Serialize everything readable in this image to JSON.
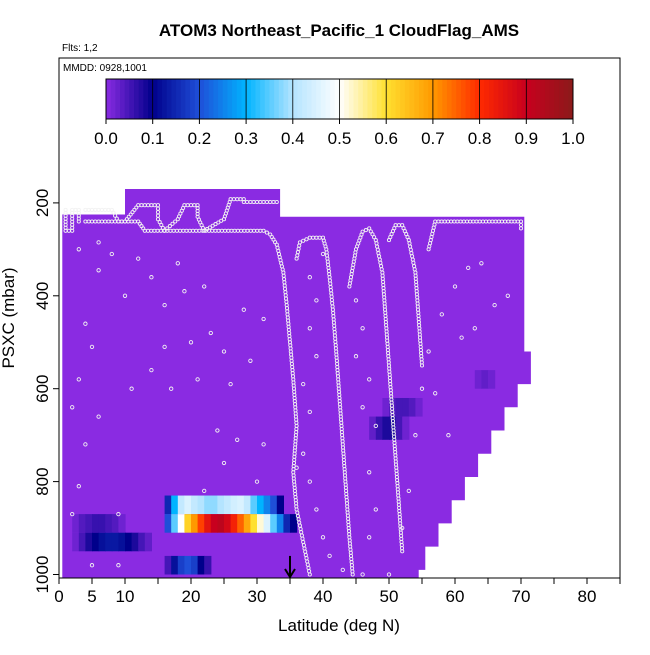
{
  "chart_data": {
    "type": "heatmap",
    "title": "ATOM3 Northeast_Pacific_1 CloudFlag_AMS",
    "subtitle_flights": "Flts: 1,2",
    "subtitle_dates": "MMDD: 0928,1001",
    "xlabel": "Latitude (deg N)",
    "ylabel": "PSXC (mbar)",
    "xlim": [
      0,
      85
    ],
    "ylim": [
      1000,
      0
    ],
    "x_ticks": [
      0,
      5,
      10,
      20,
      30,
      40,
      50,
      60,
      70,
      80
    ],
    "x_minor_ticks": [
      15,
      25,
      35,
      45,
      55,
      65,
      75,
      85
    ],
    "y_ticks": [
      200,
      400,
      600,
      800,
      1000
    ],
    "colorbar": {
      "min": 0.0,
      "max": 1.0,
      "ticks": [
        "0.0",
        "0.1",
        "0.2",
        "0.3",
        "0.4",
        "0.5",
        "0.6",
        "0.7",
        "0.8",
        "0.9",
        "1.0"
      ],
      "stops": [
        {
          "value": 0.0,
          "color": "#8a2be2"
        },
        {
          "value": 0.1,
          "color": "#00008b"
        },
        {
          "value": 0.2,
          "color": "#1f4fd8"
        },
        {
          "value": 0.3,
          "color": "#00b4ff"
        },
        {
          "value": 0.4,
          "color": "#b4e4ff"
        },
        {
          "value": 0.5,
          "color": "#ffffff"
        },
        {
          "value": 0.6,
          "color": "#ffe030"
        },
        {
          "value": 0.7,
          "color": "#ff9900"
        },
        {
          "value": 0.8,
          "color": "#ff2a00"
        },
        {
          "value": 0.9,
          "color": "#c8001e"
        },
        {
          "value": 1.0,
          "color": "#8b1a1a"
        }
      ]
    },
    "background_value": 0.0,
    "domain_envelope": [
      [
        0.5,
        225
      ],
      [
        10,
        225
      ],
      [
        10,
        170
      ],
      [
        33.5,
        170
      ],
      [
        33.5,
        230
      ],
      [
        70.5,
        230
      ],
      [
        70.5,
        520
      ],
      [
        71.5,
        520
      ],
      [
        71.5,
        590
      ],
      [
        69.5,
        590
      ],
      [
        69.5,
        640
      ],
      [
        67.5,
        640
      ],
      [
        67.5,
        690
      ],
      [
        65.5,
        690
      ],
      [
        65.5,
        740
      ],
      [
        63.5,
        740
      ],
      [
        63.5,
        790
      ],
      [
        61.5,
        790
      ],
      [
        61.5,
        840
      ],
      [
        59.5,
        840
      ],
      [
        59.5,
        890
      ],
      [
        57.5,
        890
      ],
      [
        57.5,
        940
      ],
      [
        55.5,
        940
      ],
      [
        55.5,
        990
      ],
      [
        54.5,
        990
      ],
      [
        54.5,
        1010
      ],
      [
        0.5,
        1010
      ]
    ],
    "data_patches": [
      {
        "lat_range": [
          16,
          34
        ],
        "p_range": [
          830,
          870
        ],
        "values": [
          0.15,
          0.3,
          0.42,
          0.45,
          0.42,
          0.4,
          0.38,
          0.38,
          0.4,
          0.42,
          0.44,
          0.45,
          0.42,
          0.35,
          0.3,
          0.25,
          0.2,
          0.1
        ]
      },
      {
        "lat_range": [
          16,
          36
        ],
        "p_range": [
          870,
          910
        ],
        "values": [
          0.2,
          0.35,
          0.5,
          0.62,
          0.7,
          0.78,
          0.85,
          0.9,
          0.92,
          0.88,
          0.82,
          0.75,
          0.68,
          0.6,
          0.52,
          0.45,
          0.35,
          0.25,
          0.15,
          0.1
        ]
      },
      {
        "lat_range": [
          2,
          10
        ],
        "p_range": [
          870,
          910
        ],
        "values": [
          0.02,
          0.04,
          0.05,
          0.06,
          0.06,
          0.05,
          0.04,
          0.02
        ]
      },
      {
        "lat_range": [
          2,
          14
        ],
        "p_range": [
          910,
          950
        ],
        "values": [
          0.02,
          0.05,
          0.08,
          0.1,
          0.12,
          0.13,
          0.13,
          0.12,
          0.1,
          0.08,
          0.05,
          0.03
        ]
      },
      {
        "lat_range": [
          16,
          23
        ],
        "p_range": [
          960,
          1000
        ],
        "values": [
          0.05,
          0.12,
          0.18,
          0.2,
          0.18,
          0.1,
          0.06
        ]
      },
      {
        "lat_range": [
          49,
          55
        ],
        "p_range": [
          620,
          660
        ],
        "values": [
          0.02,
          0.04,
          0.05,
          0.05,
          0.04,
          0.02
        ]
      },
      {
        "lat_range": [
          47,
          53
        ],
        "p_range": [
          660,
          710
        ],
        "values": [
          0.03,
          0.06,
          0.08,
          0.08,
          0.05,
          0.02
        ]
      },
      {
        "lat_range": [
          63,
          66
        ],
        "p_range": [
          560,
          600
        ],
        "values": [
          0.02,
          0.03,
          0.02
        ]
      }
    ],
    "flight_track_segments": [
      [
        [
          1,
          215
        ],
        [
          1,
          260
        ],
        [
          2,
          260
        ],
        [
          2,
          215
        ],
        [
          3,
          215
        ],
        [
          3,
          240
        ]
      ],
      [
        [
          4,
          215
        ],
        [
          8,
          215
        ],
        [
          9,
          240
        ],
        [
          10,
          240
        ],
        [
          12,
          205
        ],
        [
          15,
          205
        ],
        [
          15,
          235
        ],
        [
          16,
          260
        ],
        [
          18,
          235
        ],
        [
          19,
          205
        ],
        [
          21,
          205
        ],
        [
          21,
          230
        ],
        [
          22,
          260
        ],
        [
          25,
          235
        ],
        [
          26,
          192
        ],
        [
          28,
          192
        ],
        [
          28,
          198
        ],
        [
          33,
          198
        ]
      ],
      [
        [
          4,
          240
        ],
        [
          12,
          240
        ],
        [
          13,
          260
        ],
        [
          31,
          260
        ],
        [
          32,
          268
        ],
        [
          33,
          290
        ],
        [
          34,
          350
        ],
        [
          34.5,
          420
        ],
        [
          35,
          500
        ],
        [
          35.5,
          580
        ],
        [
          36,
          680
        ],
        [
          35.5,
          780
        ],
        [
          36,
          860
        ],
        [
          37,
          930
        ],
        [
          38,
          1000
        ]
      ],
      [
        [
          36,
          320
        ],
        [
          36.5,
          285
        ],
        [
          38,
          275
        ],
        [
          40,
          275
        ],
        [
          40.5,
          300
        ],
        [
          41,
          360
        ],
        [
          41.5,
          430
        ],
        [
          42,
          520
        ],
        [
          42.5,
          620
        ],
        [
          43,
          720
        ],
        [
          43.5,
          820
        ],
        [
          44,
          920
        ],
        [
          44.5,
          1000
        ]
      ],
      [
        [
          44,
          380
        ],
        [
          45,
          300
        ],
        [
          46,
          262
        ],
        [
          47,
          255
        ],
        [
          48,
          280
        ],
        [
          49,
          350
        ],
        [
          49.5,
          450
        ],
        [
          50,
          550
        ],
        [
          50.5,
          650
        ],
        [
          51,
          750
        ],
        [
          51.5,
          850
        ],
        [
          52,
          950
        ]
      ],
      [
        [
          50,
          280
        ],
        [
          51,
          248
        ],
        [
          52,
          248
        ],
        [
          53,
          280
        ],
        [
          54,
          350
        ],
        [
          54.5,
          450
        ],
        [
          55,
          550
        ]
      ],
      [
        [
          56,
          300
        ],
        [
          57,
          240
        ],
        [
          70,
          240
        ],
        [
          70,
          255
        ]
      ]
    ],
    "scatter_points": [
      [
        3,
        300
      ],
      [
        6,
        345
      ],
      [
        4,
        460
      ],
      [
        5,
        510
      ],
      [
        3,
        580
      ],
      [
        2,
        640
      ],
      [
        6,
        660
      ],
      [
        4,
        720
      ],
      [
        3,
        810
      ],
      [
        2,
        870
      ],
      [
        5,
        980
      ],
      [
        9,
        870
      ],
      [
        9,
        980
      ],
      [
        6,
        285
      ],
      [
        8,
        310
      ],
      [
        10,
        400
      ],
      [
        12,
        320
      ],
      [
        14,
        360
      ],
      [
        16,
        420
      ],
      [
        18,
        330
      ],
      [
        19,
        390
      ],
      [
        22,
        380
      ],
      [
        23,
        480
      ],
      [
        20,
        500
      ],
      [
        16,
        510
      ],
      [
        14,
        560
      ],
      [
        11,
        600
      ],
      [
        17,
        600
      ],
      [
        21,
        580
      ],
      [
        25,
        520
      ],
      [
        26,
        590
      ],
      [
        27,
        710
      ],
      [
        25,
        760
      ],
      [
        24,
        690
      ],
      [
        22,
        820
      ],
      [
        30,
        800
      ],
      [
        31,
        720
      ],
      [
        29,
        540
      ],
      [
        31,
        450
      ],
      [
        28,
        430
      ],
      [
        40,
        310
      ],
      [
        38,
        360
      ],
      [
        39,
        410
      ],
      [
        38,
        470
      ],
      [
        39,
        530
      ],
      [
        37,
        590
      ],
      [
        38,
        650
      ],
      [
        37,
        740
      ],
      [
        36,
        770
      ],
      [
        38,
        800
      ],
      [
        39,
        860
      ],
      [
        40,
        920
      ],
      [
        41,
        960
      ],
      [
        43,
        990
      ],
      [
        45,
        410
      ],
      [
        46,
        470
      ],
      [
        45,
        530
      ],
      [
        47,
        580
      ],
      [
        46,
        640
      ],
      [
        48,
        680
      ],
      [
        47,
        780
      ],
      [
        48,
        860
      ],
      [
        47,
        920
      ],
      [
        53,
        820
      ],
      [
        52,
        900
      ],
      [
        54,
        700
      ],
      [
        55,
        600
      ],
      [
        56,
        520
      ],
      [
        58,
        440
      ],
      [
        60,
        380
      ],
      [
        62,
        340
      ],
      [
        64,
        330
      ],
      [
        66,
        420
      ],
      [
        68,
        400
      ],
      [
        61,
        490
      ],
      [
        63,
        470
      ],
      [
        57,
        610
      ],
      [
        59,
        700
      ],
      [
        46,
        1000
      ],
      [
        50,
        1000
      ]
    ],
    "arrow_marker": {
      "lat": 35,
      "p": 960
    }
  }
}
